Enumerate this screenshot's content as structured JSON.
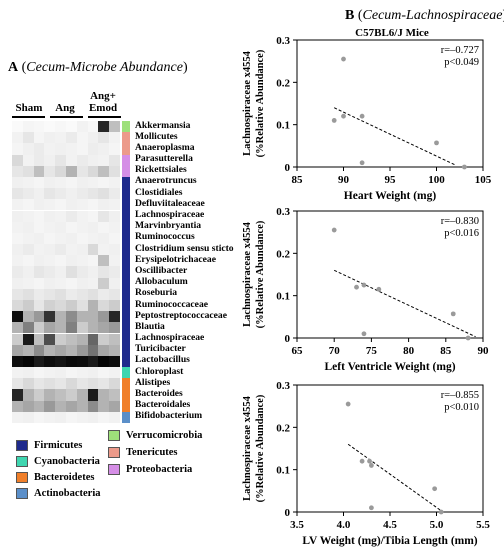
{
  "panelA": {
    "letter": "A",
    "title_paren_open": " (",
    "title_italic": "Cecum-Microbe Abundance",
    "title_paren_close": ")",
    "groups": [
      "Sham",
      "Ang",
      "Ang+\nEmod"
    ],
    "taxa": [
      "Akkermansia",
      "Mollicutes",
      "Anaeroplasma",
      "Parasutterella",
      "Rickettsiales",
      "Anaerotruncus",
      "Clostidiales",
      "Defluviitaleaceae",
      "Lachnospiraceae",
      "Marvinbryantia",
      "Ruminococcus",
      "Clostridium sensu sticto",
      "Erysipelotrichaceae",
      "Oscillibacter",
      "Allobaculum",
      "Roseburia",
      "Ruminococcaceae",
      "Peptostreptococcaceae",
      "Blautia",
      "Lachnospiraceae",
      "Turicibacter",
      "Lactobacillus",
      "Chloroplast",
      "Alistipes",
      "Bacteroides",
      "Bacteroidales",
      "Bifidobacterium"
    ],
    "phylum_of_taxon": [
      "Verrucomicrobia",
      "Tenericutes",
      "Tenericutes",
      "Proteobacteria",
      "Proteobacteria",
      "Firmicutes",
      "Firmicutes",
      "Firmicutes",
      "Firmicutes",
      "Firmicutes",
      "Firmicutes",
      "Firmicutes",
      "Firmicutes",
      "Firmicutes",
      "Firmicutes",
      "Firmicutes",
      "Firmicutes",
      "Firmicutes",
      "Firmicutes",
      "Firmicutes",
      "Firmicutes",
      "Firmicutes",
      "Cyanobacteria",
      "Bacteroidetes",
      "Bacteroidetes",
      "Bacteroidetes",
      "Actinobacteria"
    ],
    "phylum_colors": {
      "Firmicutes": "#1f2a8c",
      "Cyanobacteria": "#3fd6b0",
      "Bacteroidetes": "#f07f2a",
      "Actinobacteria": "#5b8fc9",
      "Verrucomicrobia": "#9ee07a",
      "Tenericutes": "#ec9a8a",
      "Proteobacteria": "#d58ee6"
    },
    "legend_left": [
      "Firmicutes",
      "Cyanobacteria",
      "Bacteroidetes",
      "Actinobacteria"
    ],
    "legend_right": [
      "Verrucomicrobia",
      "Tenericutes",
      "Proteobacteria"
    ],
    "heatmap_intensity": [
      [
        0.02,
        0.04,
        0.03,
        0.02,
        0.03,
        0.02,
        0.05,
        0.03,
        0.85,
        0.25
      ],
      [
        0.05,
        0.1,
        0.04,
        0.06,
        0.05,
        0.08,
        0.04,
        0.06,
        0.1,
        0.05
      ],
      [
        0.04,
        0.06,
        0.08,
        0.05,
        0.06,
        0.05,
        0.04,
        0.07,
        0.06,
        0.04
      ],
      [
        0.15,
        0.05,
        0.08,
        0.06,
        0.1,
        0.05,
        0.08,
        0.06,
        0.05,
        0.1
      ],
      [
        0.1,
        0.12,
        0.25,
        0.1,
        0.15,
        0.3,
        0.1,
        0.15,
        0.25,
        0.12
      ],
      [
        0.06,
        0.05,
        0.04,
        0.06,
        0.05,
        0.04,
        0.06,
        0.05,
        0.04,
        0.05
      ],
      [
        0.1,
        0.08,
        0.06,
        0.1,
        0.08,
        0.06,
        0.08,
        0.1,
        0.12,
        0.08
      ],
      [
        0.05,
        0.04,
        0.06,
        0.05,
        0.04,
        0.06,
        0.05,
        0.04,
        0.06,
        0.05
      ],
      [
        0.06,
        0.05,
        0.04,
        0.06,
        0.05,
        0.08,
        0.05,
        0.04,
        0.1,
        0.06
      ],
      [
        0.05,
        0.06,
        0.04,
        0.05,
        0.06,
        0.04,
        0.05,
        0.06,
        0.04,
        0.05
      ],
      [
        0.04,
        0.05,
        0.06,
        0.04,
        0.05,
        0.06,
        0.04,
        0.05,
        0.06,
        0.04
      ],
      [
        0.06,
        0.08,
        0.05,
        0.06,
        0.08,
        0.05,
        0.06,
        0.15,
        0.05,
        0.06
      ],
      [
        0.05,
        0.04,
        0.06,
        0.05,
        0.04,
        0.06,
        0.05,
        0.04,
        0.25,
        0.05
      ],
      [
        0.08,
        0.06,
        0.1,
        0.08,
        0.06,
        0.12,
        0.08,
        0.06,
        0.1,
        0.08
      ],
      [
        0.06,
        0.05,
        0.04,
        0.06,
        0.05,
        0.04,
        0.06,
        0.05,
        0.2,
        0.06
      ],
      [
        0.1,
        0.12,
        0.08,
        0.1,
        0.12,
        0.08,
        0.1,
        0.12,
        0.08,
        0.1
      ],
      [
        0.15,
        0.2,
        0.1,
        0.18,
        0.15,
        0.2,
        0.12,
        0.3,
        0.15,
        0.2
      ],
      [
        0.95,
        0.3,
        0.4,
        0.8,
        0.3,
        0.45,
        0.3,
        0.3,
        0.4,
        0.85
      ],
      [
        0.3,
        0.5,
        0.2,
        0.35,
        0.3,
        0.5,
        0.2,
        0.3,
        0.35,
        0.4
      ],
      [
        0.2,
        0.9,
        0.25,
        0.7,
        0.2,
        0.25,
        0.3,
        0.6,
        0.2,
        0.25
      ],
      [
        0.35,
        0.3,
        0.45,
        0.3,
        0.35,
        0.3,
        0.4,
        0.55,
        0.35,
        0.3
      ],
      [
        0.95,
        0.98,
        0.9,
        0.95,
        0.92,
        0.96,
        0.95,
        0.9,
        0.98,
        0.95
      ],
      [
        0.05,
        0.06,
        0.04,
        0.05,
        0.06,
        0.04,
        0.05,
        0.06,
        0.04,
        0.05
      ],
      [
        0.1,
        0.15,
        0.1,
        0.12,
        0.1,
        0.15,
        0.1,
        0.12,
        0.1,
        0.15
      ],
      [
        0.85,
        0.3,
        0.2,
        0.3,
        0.25,
        0.2,
        0.3,
        0.9,
        0.3,
        0.25
      ],
      [
        0.3,
        0.35,
        0.3,
        0.4,
        0.3,
        0.35,
        0.3,
        0.45,
        0.3,
        0.35
      ],
      [
        0.05,
        0.06,
        0.04,
        0.05,
        0.06,
        0.04,
        0.05,
        0.06,
        0.04,
        0.05
      ]
    ]
  },
  "panelB": {
    "letter": "B",
    "title_paren_open": " (",
    "title_italic": "Cecum-Lachnospiraceae",
    "title_paren_close": ")",
    "subtitle": "C57BL6/J Mice"
  },
  "chart_data": [
    {
      "type": "scatter",
      "title": "C57BL6/J Mice",
      "xlabel": "Heart Weight (mg)",
      "ylabel_line1": "Lachnospiraceae x4554",
      "ylabel_line2": "(%Relative Abundance)",
      "xlim": [
        85,
        105
      ],
      "ylim": [
        0,
        0.3
      ],
      "xticks": [
        "85",
        "90",
        "95",
        "100",
        "105"
      ],
      "yticks": [
        "0",
        "0.1",
        "0.2",
        "0.3"
      ],
      "x": [
        89,
        90,
        90,
        92,
        92,
        100,
        103
      ],
      "y": [
        0.11,
        0.255,
        0.12,
        0.12,
        0.01,
        0.057,
        0.0
      ],
      "trend": {
        "x": [
          89,
          102
        ],
        "y": [
          0.14,
          0.005
        ]
      },
      "stat_r": "r=–0.727",
      "stat_p": "p<0.049"
    },
    {
      "type": "scatter",
      "xlabel": "Left Ventricle Weight (mg)",
      "ylabel_line1": "Lachnospiraceae x4554",
      "ylabel_line2": "(%Relative Abundance)",
      "xlim": [
        65,
        90
      ],
      "ylim": [
        0,
        0.3
      ],
      "xticks": [
        "65",
        "70",
        "75",
        "80",
        "85",
        "90"
      ],
      "yticks": [
        "0",
        "0.1",
        "0.2",
        "0.3"
      ],
      "x": [
        70,
        73,
        74,
        74,
        76,
        86,
        88
      ],
      "y": [
        0.255,
        0.12,
        0.125,
        0.01,
        0.115,
        0.057,
        0.0
      ],
      "trend": {
        "x": [
          70,
          89
        ],
        "y": [
          0.16,
          0.003
        ]
      },
      "stat_r": "r=–0.830",
      "stat_p": "p<0.016"
    },
    {
      "type": "scatter",
      "xlabel": "LV Weight (mg)/Tibia Length (mm)",
      "ylabel_line1": "Lachnospiraceae x4554",
      "ylabel_line2": "(%Relative Abundance)",
      "xlim": [
        3.5,
        5.5
      ],
      "ylim": [
        0,
        0.3
      ],
      "xticks": [
        "3.5",
        "4.0",
        "4.5",
        "5.0",
        "5.5"
      ],
      "yticks": [
        "0",
        "0.1",
        "0.2",
        "0.3"
      ],
      "x": [
        4.05,
        4.2,
        4.28,
        4.3,
        4.3,
        4.98,
        5.05
      ],
      "y": [
        0.255,
        0.12,
        0.12,
        0.11,
        0.01,
        0.055,
        0.0
      ],
      "trend": {
        "x": [
          4.05,
          5.05
        ],
        "y": [
          0.16,
          0.003
        ]
      },
      "stat_r": "r=–0.855",
      "stat_p": "p<0.010"
    }
  ]
}
